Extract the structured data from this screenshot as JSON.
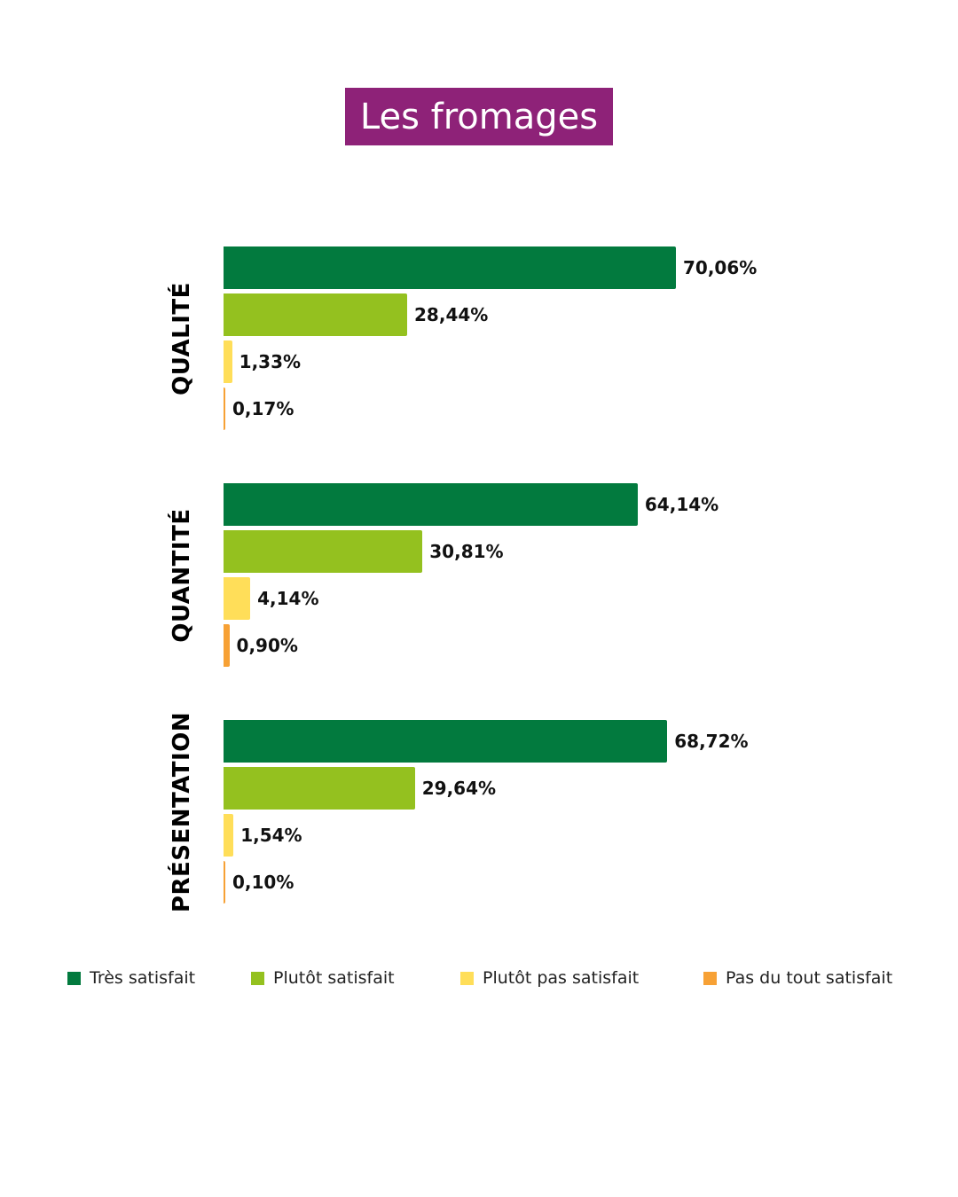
{
  "title": "Les fromages",
  "colors": {
    "title_bg": "#8e2278",
    "tres_satisfait": "#027a3e",
    "plutot_satisfait": "#94c11f",
    "plutot_pas_satisfait": "#ffde59",
    "pas_du_tout_satisfait": "#f7a135"
  },
  "legend": [
    {
      "label": "Très satisfait",
      "color": "#027a3e"
    },
    {
      "label": "Plutôt satisfait",
      "color": "#94c11f"
    },
    {
      "label": "Plutôt pas satisfait",
      "color": "#ffde59"
    },
    {
      "label": "Pas du tout satisfait",
      "color": "#f7a135"
    }
  ],
  "chart_data": {
    "type": "bar",
    "orientation": "horizontal",
    "title": "Les fromages",
    "categories": [
      "QUALITÉ",
      "QUANTITÉ",
      "PRÉSENTATION"
    ],
    "series": [
      {
        "name": "Très satisfait",
        "values": [
          70.06,
          64.14,
          68.72
        ],
        "labels": [
          "70,06%",
          "64,14%",
          "68,72%"
        ]
      },
      {
        "name": "Plutôt satisfait",
        "values": [
          28.44,
          30.81,
          29.64
        ],
        "labels": [
          "28,44%",
          "30,81%",
          "29,64%"
        ]
      },
      {
        "name": "Plutôt pas satisfait",
        "values": [
          1.33,
          4.14,
          1.54
        ],
        "labels": [
          "1,33%",
          "4,14%",
          "1,54%"
        ]
      },
      {
        "name": "Pas du tout satisfait",
        "values": [
          0.17,
          0.9,
          0.1
        ],
        "labels": [
          "0,17%",
          "0,90%",
          "0,10%"
        ]
      }
    ],
    "legend_position": "bottom",
    "grid": false
  }
}
